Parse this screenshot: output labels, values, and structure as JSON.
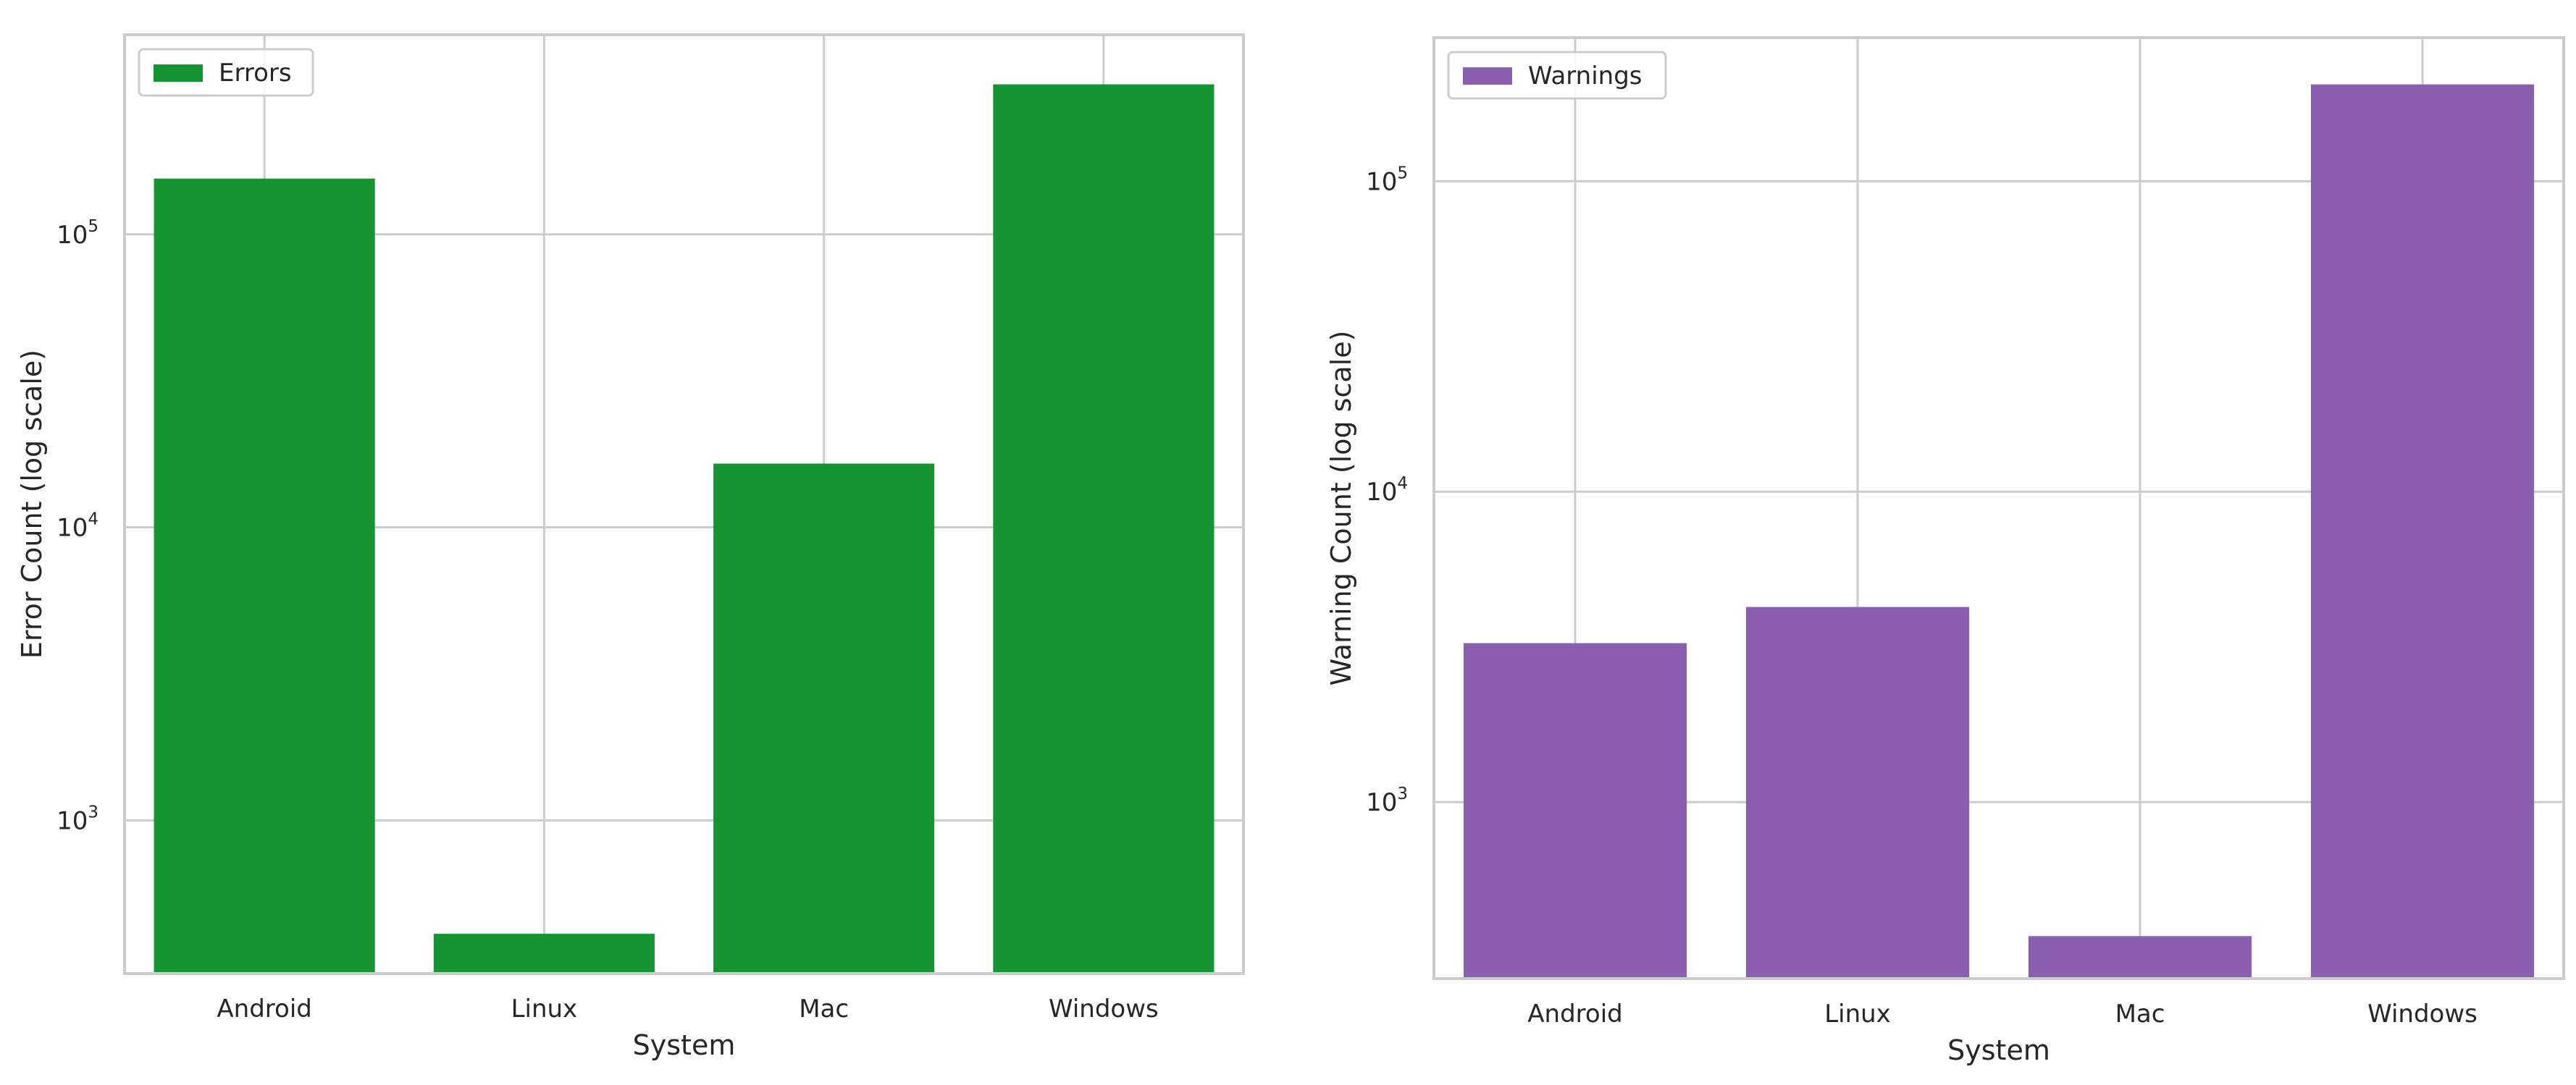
{
  "chart_data": [
    {
      "type": "bar",
      "categories": [
        "Android",
        "Linux",
        "Mac",
        "Windows"
      ],
      "series": [
        {
          "name": "Errors",
          "values": [
            155000,
            410,
            16500,
            325000
          ]
        }
      ],
      "xlabel": "System",
      "ylabel": "Error Count (log scale)",
      "yscale": "log",
      "ylim": [
        300,
        480000
      ],
      "yticks": [
        1000,
        10000,
        100000
      ],
      "ytick_labels": [
        {
          "base": "10",
          "exp": "3"
        },
        {
          "base": "10",
          "exp": "4"
        },
        {
          "base": "10",
          "exp": "5"
        }
      ],
      "color": "#159432",
      "grid": true,
      "legend_position": "top-left"
    },
    {
      "type": "bar",
      "categories": [
        "Android",
        "Linux",
        "Mac",
        "Windows"
      ],
      "series": [
        {
          "name": "Warnings",
          "values": [
            3250,
            4250,
            370,
            205000
          ]
        }
      ],
      "xlabel": "System",
      "ylabel": "Warning Count (log scale)",
      "yscale": "log",
      "ylim": [
        270,
        290000
      ],
      "yticks": [
        1000,
        10000,
        100000
      ],
      "ytick_labels": [
        {
          "base": "10",
          "exp": "3"
        },
        {
          "base": "10",
          "exp": "4"
        },
        {
          "base": "10",
          "exp": "5"
        }
      ],
      "color": "#8a5eb0",
      "grid": true,
      "legend_position": "top-left"
    }
  ]
}
